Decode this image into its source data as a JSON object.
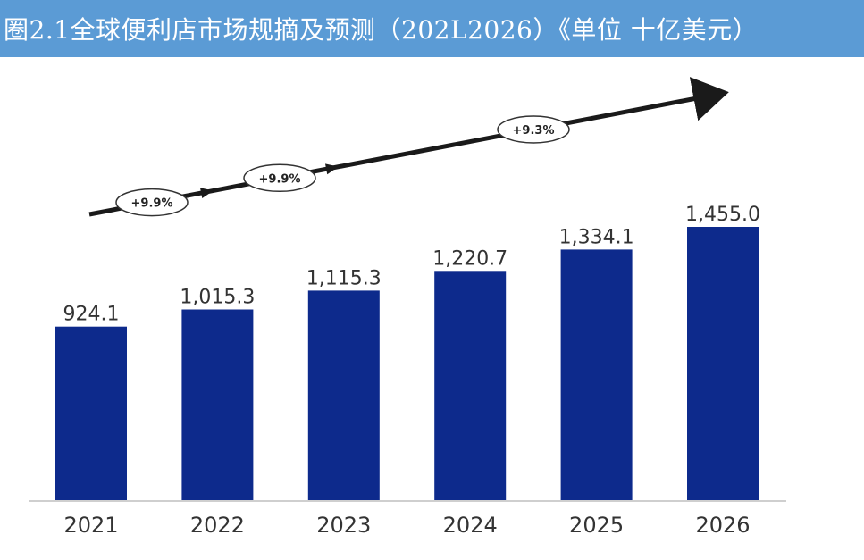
{
  "header": {
    "title": "圈2.1全球便利店市场规摘及预测（202L2026）《单位  十亿美元）"
  },
  "colors": {
    "banner": "#5b9bd5",
    "bar": "#0d2a8c",
    "arrow": "#1a1a1a"
  },
  "chart_data": {
    "type": "bar",
    "title": "圈2.1全球便利店市场规摘及预测（202L2026）《单位  十亿美元）",
    "categories": [
      "2021",
      "2022",
      "2023",
      "2024",
      "2025",
      "2026"
    ],
    "values": [
      924.1,
      1015.3,
      1115.3,
      1220.7,
      1334.1,
      1455.0
    ],
    "value_labels": [
      "924.1",
      "1,015.3",
      "1,115.3",
      "1,220.7",
      "1,334.1",
      "1,455.0"
    ],
    "xlabel": "",
    "ylabel": "",
    "ylim": [
      0,
      1455.0
    ],
    "grid": false,
    "legend": "none",
    "annotations": [
      "+9.9%",
      "+9.9%",
      "+9.3%"
    ]
  }
}
